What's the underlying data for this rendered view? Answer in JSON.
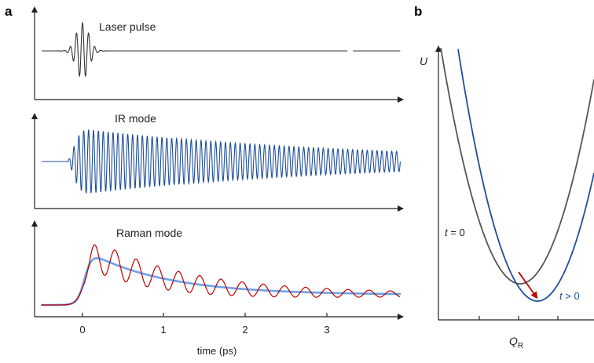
{
  "panel_a": {
    "label": "a",
    "laser": {
      "title": "Laser pulse",
      "color": "#333333"
    },
    "ir": {
      "title": "IR mode",
      "color": "#1f4e9c"
    },
    "raman": {
      "title": "Raman mode",
      "color": "#c00000",
      "envelope_color": "#6f9fe6"
    },
    "x_ticks": [
      "0",
      "1",
      "2",
      "3"
    ],
    "x_label": "time (ps)"
  },
  "panel_b": {
    "label": "b",
    "y_label": "U",
    "x_label_main": "Q",
    "x_label_sub": "R",
    "curve_t0": {
      "label_var": "t",
      "label_rest": " = 0",
      "color": "#555555"
    },
    "curve_t1": {
      "label_var": "t",
      "label_rest": " > 0",
      "color": "#1f4e9c"
    },
    "arrow_color": "#c00000"
  }
}
